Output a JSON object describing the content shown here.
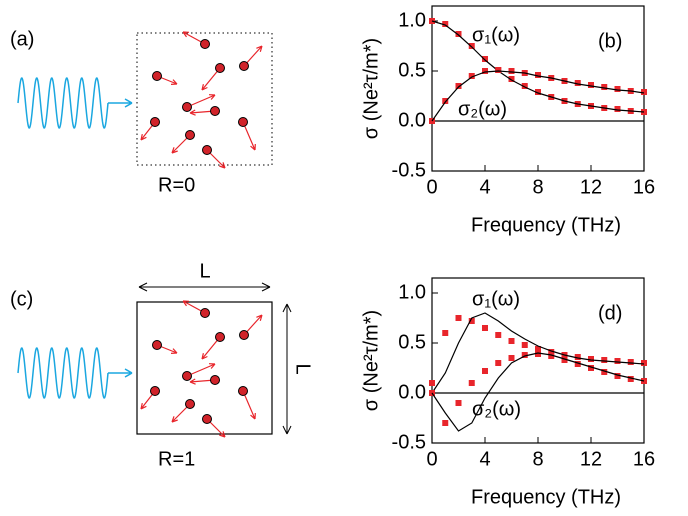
{
  "diagrams": [
    {
      "label": "(a)",
      "caption": "R=0"
    },
    {
      "label": "(c)",
      "caption": "R=1",
      "dimension_labels": [
        "L",
        "L"
      ]
    }
  ],
  "chart_data": [
    {
      "type": "line",
      "panel_label": "(b)",
      "xlabel": "Frequency (THz)",
      "ylabel": "σ (Ne²τ/m*)",
      "annotations": [
        "σ₁(ω)",
        "σ₂(ω)"
      ],
      "x": [
        0,
        1,
        2,
        3,
        4,
        5,
        6,
        7,
        8,
        9,
        10,
        11,
        12,
        13,
        14,
        15,
        16
      ],
      "xlim": [
        0,
        16
      ],
      "xticks": [
        0,
        4,
        8,
        12,
        16
      ],
      "ylim": [
        -0.5,
        1.15
      ],
      "yticks": [
        {
          "value": -0.5,
          "label": "-0.5"
        },
        {
          "value": 0,
          "label": "0.0"
        },
        {
          "value": 0.5,
          "label": "0.5"
        },
        {
          "value": 1,
          "label": "1.0"
        }
      ],
      "zero_line": true,
      "series": [
        {
          "style": "markers",
          "color": "#e8252b",
          "values": [
            1.0,
            0.97,
            0.87,
            0.75,
            0.62,
            0.51,
            0.42,
            0.35,
            0.29,
            0.24,
            0.2,
            0.17,
            0.15,
            0.13,
            0.12,
            0.1,
            0.09
          ]
        },
        {
          "style": "line",
          "color": "#000000",
          "values": [
            1.0,
            0.96,
            0.86,
            0.74,
            0.61,
            0.5,
            0.41,
            0.34,
            0.28,
            0.24,
            0.2,
            0.17,
            0.15,
            0.13,
            0.11,
            0.1,
            0.09
          ]
        },
        {
          "style": "markers",
          "color": "#e8252b",
          "values": [
            0,
            0.2,
            0.35,
            0.45,
            0.5,
            0.51,
            0.5,
            0.48,
            0.46,
            0.43,
            0.4,
            0.38,
            0.36,
            0.34,
            0.32,
            0.3,
            0.29
          ]
        },
        {
          "style": "line",
          "color": "#000000",
          "values": [
            0,
            0.19,
            0.34,
            0.44,
            0.49,
            0.5,
            0.49,
            0.48,
            0.45,
            0.43,
            0.4,
            0.37,
            0.35,
            0.33,
            0.31,
            0.3,
            0.28
          ]
        }
      ]
    },
    {
      "type": "line",
      "panel_label": "(d)",
      "xlabel": "Frequency (THz)",
      "ylabel": "σ (Ne²τ/m*)",
      "annotations": [
        "σ₁(ω)",
        "σ₂(ω)"
      ],
      "x": [
        0,
        1,
        2,
        3,
        4,
        5,
        6,
        7,
        8,
        9,
        10,
        11,
        12,
        13,
        14,
        15,
        16
      ],
      "xlim": [
        0,
        16
      ],
      "xticks": [
        0,
        4,
        8,
        12,
        16
      ],
      "ylim": [
        -0.5,
        1.15
      ],
      "yticks": [
        {
          "value": -0.5,
          "label": "-0.5"
        },
        {
          "value": 0,
          "label": "0.0"
        },
        {
          "value": 0.5,
          "label": "0.5"
        },
        {
          "value": 1,
          "label": "1.0"
        }
      ],
      "zero_line": true,
      "series": [
        {
          "style": "markers",
          "color": "#e8252b",
          "values": [
            0.1,
            0.6,
            0.75,
            0.72,
            0.65,
            0.58,
            0.52,
            0.48,
            0.44,
            0.41,
            0.38,
            0.36,
            0.34,
            0.33,
            0.32,
            0.31,
            0.3
          ]
        },
        {
          "style": "line",
          "color": "#000000",
          "values": [
            0,
            0.2,
            0.5,
            0.75,
            0.8,
            0.72,
            0.62,
            0.54,
            0.47,
            0.42,
            0.38,
            0.35,
            0.33,
            0.32,
            0.31,
            0.3,
            0.29
          ]
        },
        {
          "style": "markers",
          "color": "#e8252b",
          "values": [
            0,
            -0.3,
            -0.1,
            0.1,
            0.22,
            0.3,
            0.35,
            0.38,
            0.39,
            0.37,
            0.33,
            0.29,
            0.25,
            0.21,
            0.17,
            0.14,
            0.12
          ]
        },
        {
          "style": "line",
          "color": "#000000",
          "values": [
            0,
            -0.2,
            -0.38,
            -0.3,
            -0.05,
            0.15,
            0.3,
            0.37,
            0.4,
            0.38,
            0.34,
            0.3,
            0.26,
            0.22,
            0.18,
            0.15,
            0.12
          ]
        }
      ]
    }
  ]
}
